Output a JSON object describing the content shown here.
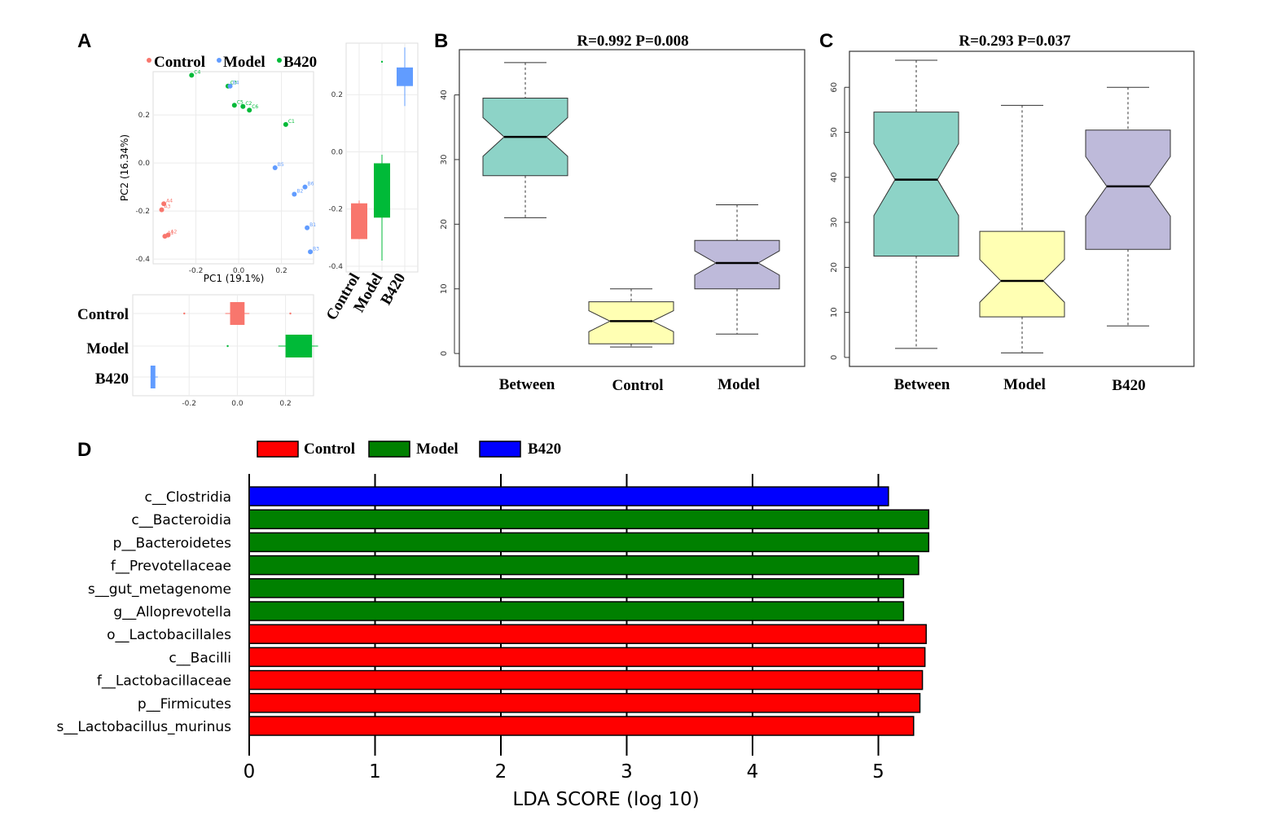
{
  "panel_labels": [
    "A",
    "B",
    "C",
    "D"
  ],
  "colors": {
    "control": "#f8766d",
    "model": "#00ba38",
    "b420": "#619cff",
    "between_box": "#8dd3c7",
    "control_box": "#ffffb3",
    "model_box": "#bebada",
    "lda_control": "#ff0000",
    "lda_model": "#008000",
    "lda_b420": "#0000ff"
  },
  "chart_data": [
    {
      "id": "A-pca",
      "type": "scatter",
      "legend": [
        "Control",
        "Model",
        "B420"
      ],
      "legend_placement": "top",
      "xlabel": "PC1 (19.1%)",
      "ylabel": "PC2 (16.34%)",
      "xlim": [
        -0.4,
        0.35
      ],
      "ylim": [
        -0.42,
        0.38
      ],
      "xticks": [
        "-0.2",
        "0.0",
        "0.2"
      ],
      "yticks": [
        "-0.4",
        "-0.2",
        "0.0",
        "0.2"
      ],
      "xtick_values": [
        -0.2,
        0.0,
        0.2
      ],
      "ytick_values": [
        -0.4,
        -0.2,
        0.0,
        0.2
      ],
      "grid": true,
      "series": [
        {
          "name": "Control",
          "points": [
            {
              "x": -0.35,
              "y": -0.17,
              "label": "A4"
            },
            {
              "x": -0.36,
              "y": -0.195,
              "label": "A3"
            },
            {
              "x": -0.33,
              "y": -0.3,
              "label": "A2"
            },
            {
              "x": -0.345,
              "y": -0.305,
              "label": "A1"
            }
          ]
        },
        {
          "name": "Model",
          "points": [
            {
              "x": -0.22,
              "y": 0.365,
              "label": "C4"
            },
            {
              "x": -0.05,
              "y": 0.32,
              "label": "C3"
            },
            {
              "x": -0.02,
              "y": 0.24,
              "label": "C5"
            },
            {
              "x": 0.02,
              "y": 0.235,
              "label": "C2"
            },
            {
              "x": 0.05,
              "y": 0.22,
              "label": "C6"
            },
            {
              "x": 0.22,
              "y": 0.16,
              "label": "C1"
            }
          ]
        },
        {
          "name": "B420",
          "points": [
            {
              "x": -0.04,
              "y": 0.32,
              "label": "B4"
            },
            {
              "x": 0.17,
              "y": -0.02,
              "label": "B5"
            },
            {
              "x": 0.26,
              "y": -0.13,
              "label": "B2"
            },
            {
              "x": 0.31,
              "y": -0.1,
              "label": "B6"
            },
            {
              "x": 0.32,
              "y": -0.27,
              "label": "B1"
            },
            {
              "x": 0.335,
              "y": -0.37,
              "label": "B3"
            }
          ]
        }
      ]
    },
    {
      "id": "A-pc2-box",
      "type": "box",
      "orientation": "vertical",
      "categories": [
        "Control",
        "Model",
        "B420"
      ],
      "ylim": [
        -0.42,
        0.38
      ],
      "yticks": [
        "-0.4",
        "-0.2",
        "0.0",
        "0.2"
      ],
      "ytick_values": [
        -0.4,
        -0.2,
        0.0,
        0.2
      ],
      "boxes": [
        {
          "name": "Control",
          "q1": -0.305,
          "median": -0.2,
          "q3": -0.18,
          "whisker_low": -0.305,
          "whisker_high": -0.17
        },
        {
          "name": "Model",
          "q1": -0.23,
          "median": -0.1,
          "q3": -0.04,
          "whisker_low": -0.38,
          "whisker_high": -0.01,
          "outliers": [
            0.315
          ]
        },
        {
          "name": "B420",
          "q1": 0.23,
          "median": 0.25,
          "q3": 0.295,
          "whisker_low": 0.16,
          "whisker_high": 0.365
        }
      ]
    },
    {
      "id": "A-pc1-box",
      "type": "box",
      "orientation": "horizontal",
      "categories": [
        "Control",
        "Model",
        "B420"
      ],
      "xlim": [
        -0.4,
        0.35
      ],
      "xticks": [
        "-0.2",
        "0.0",
        "0.2"
      ],
      "xtick_values": [
        -0.2,
        0.0,
        0.2
      ],
      "boxes": [
        {
          "name": "Control",
          "q1": -0.03,
          "median": 0.0,
          "q3": 0.03,
          "whisker_low": -0.05,
          "whisker_high": 0.05,
          "outliers": [
            -0.22,
            0.22
          ]
        },
        {
          "name": "Model",
          "q1": 0.2,
          "median": 0.27,
          "q3": 0.31,
          "whisker_low": 0.17,
          "whisker_high": 0.335,
          "outliers": [
            -0.04
          ]
        },
        {
          "name": "B420",
          "q1": -0.36,
          "median": -0.35,
          "q3": -0.34,
          "whisker_low": -0.36,
          "whisker_high": -0.33
        }
      ]
    },
    {
      "id": "B",
      "type": "box",
      "notched": true,
      "title": "R=0.992   P=0.008",
      "categories": [
        "Between",
        "Control",
        "Model"
      ],
      "ylim": [
        -2,
        47
      ],
      "yticks": [
        "0",
        "10",
        "20",
        "30",
        "40"
      ],
      "ytick_values": [
        0,
        10,
        20,
        30,
        40
      ],
      "boxes": [
        {
          "name": "Between",
          "whisker_low": 21,
          "q1": 27.5,
          "median": 33.5,
          "q3": 39.5,
          "whisker_high": 45
        },
        {
          "name": "Control",
          "whisker_low": 1,
          "q1": 1.5,
          "median": 5,
          "q3": 8,
          "whisker_high": 10
        },
        {
          "name": "Model",
          "whisker_low": 3,
          "q1": 10,
          "median": 14,
          "q3": 17.5,
          "whisker_high": 23
        }
      ]
    },
    {
      "id": "C",
      "type": "box",
      "notched": true,
      "title": "R=0.293   P=0.037",
      "categories": [
        "Between",
        "Model",
        "B420"
      ],
      "ylim": [
        -2,
        68
      ],
      "yticks": [
        "0",
        "10",
        "20",
        "30",
        "40",
        "50",
        "60"
      ],
      "ytick_values": [
        0,
        10,
        20,
        30,
        40,
        50,
        60
      ],
      "boxes": [
        {
          "name": "Between",
          "whisker_low": 2,
          "q1": 22.5,
          "median": 39.5,
          "q3": 54.5,
          "whisker_high": 66
        },
        {
          "name": "Model",
          "whisker_low": 1,
          "q1": 9,
          "median": 17,
          "q3": 28,
          "whisker_high": 56
        },
        {
          "name": "B420",
          "whisker_low": 7,
          "q1": 24,
          "median": 38,
          "q3": 50.5,
          "whisker_high": 60
        }
      ]
    },
    {
      "id": "D",
      "type": "bar",
      "orientation": "horizontal",
      "legend": [
        "Control",
        "Model",
        "B420"
      ],
      "legend_placement": "top",
      "xlabel": "LDA SCORE (log 10)",
      "xlim": [
        0,
        5.8
      ],
      "xticks": [
        "0",
        "1",
        "2",
        "3",
        "4",
        "5"
      ],
      "xtick_values": [
        0,
        1,
        2,
        3,
        4,
        5
      ],
      "grid": true,
      "categories": [
        "c__Clostridia",
        "c__Bacteroidia",
        "p__Bacteroidetes",
        "f__Prevotellaceae",
        "s__gut_metagenome",
        "g__Alloprevotella",
        "o__Lactobacillales",
        "c__Bacilli",
        "f__Lactobacillaceae",
        "p__Firmicutes",
        "s__Lactobacillus_murinus"
      ],
      "values": [
        5.08,
        5.4,
        5.4,
        5.32,
        5.2,
        5.2,
        5.38,
        5.37,
        5.35,
        5.33,
        5.28
      ],
      "groups": [
        "B420",
        "Model",
        "Model",
        "Model",
        "Model",
        "Model",
        "Control",
        "Control",
        "Control",
        "Control",
        "Control"
      ]
    }
  ]
}
